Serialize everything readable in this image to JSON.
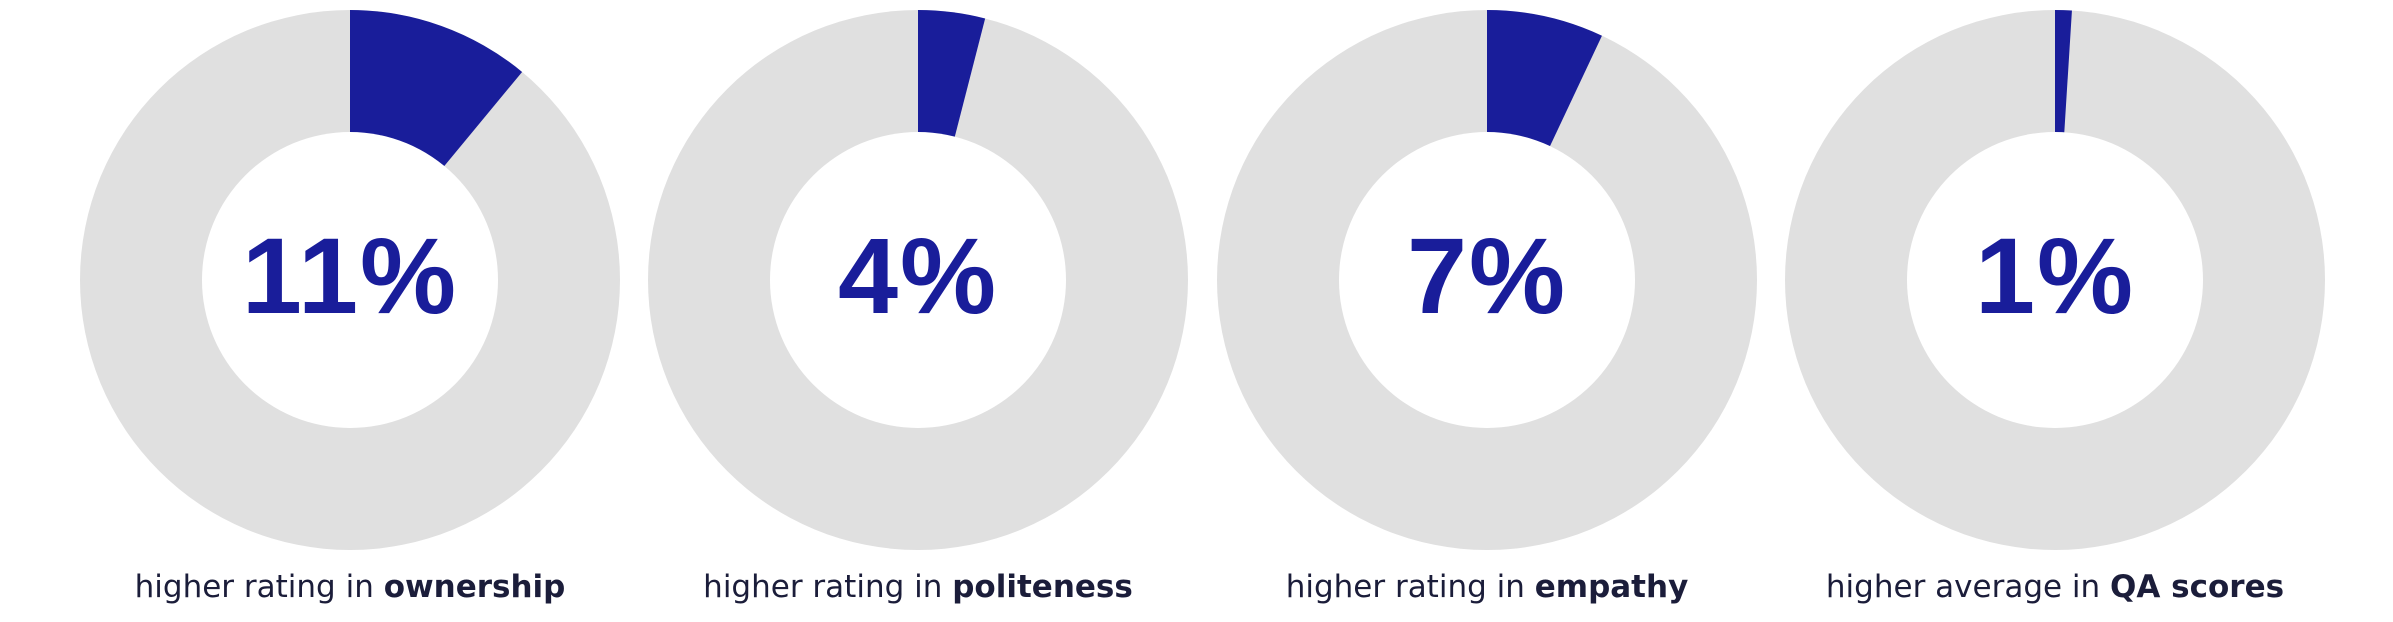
{
  "colors": {
    "accent": "#191d9a",
    "track": "#e0e0e0",
    "text": "#1b1d3a",
    "center": "#ffffff"
  },
  "chart_data": [
    {
      "type": "pie",
      "value_percent": 11,
      "value_label": "11%",
      "caption_prefix": "higher rating in ",
      "caption_bold": "ownership"
    },
    {
      "type": "pie",
      "value_percent": 4,
      "value_label": "4%",
      "caption_prefix": "higher rating in ",
      "caption_bold": "politeness"
    },
    {
      "type": "pie",
      "value_percent": 7,
      "value_label": "7%",
      "caption_prefix": "higher rating in ",
      "caption_bold": "empathy"
    },
    {
      "type": "pie",
      "value_percent": 1,
      "value_label": "1%",
      "caption_prefix": "higher average in ",
      "caption_bold": "QA scores"
    }
  ]
}
